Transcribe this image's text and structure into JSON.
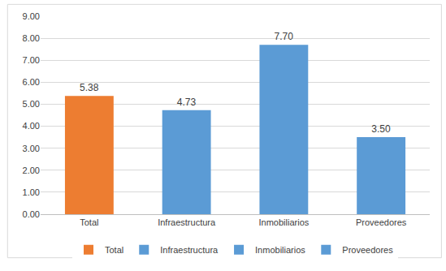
{
  "chart_data": {
    "type": "bar",
    "categories": [
      "Total",
      "Infraestructura",
      "Inmobiliarios",
      "Proveedores"
    ],
    "values": [
      5.38,
      4.73,
      7.7,
      3.5
    ],
    "value_labels": [
      "5.38",
      "4.73",
      "7.70",
      "3.50"
    ],
    "colors": [
      "#ed7d31",
      "#5b9bd5",
      "#5b9bd5",
      "#5b9bd5"
    ],
    "ylim": [
      0,
      9
    ],
    "yticks": [
      {
        "value": 0,
        "label": "0.00"
      },
      {
        "value": 1,
        "label": "1.00"
      },
      {
        "value": 2,
        "label": "2.00"
      },
      {
        "value": 3,
        "label": "3.00"
      },
      {
        "value": 4,
        "label": "4.00"
      },
      {
        "value": 5,
        "label": "5.00"
      },
      {
        "value": 6,
        "label": "6.00"
      },
      {
        "value": 7,
        "label": "7.00"
      },
      {
        "value": 8,
        "label": "8.00"
      },
      {
        "value": 9,
        "label": "9.00"
      }
    ],
    "grid": true,
    "data_labels": true,
    "legend": "bottom"
  }
}
